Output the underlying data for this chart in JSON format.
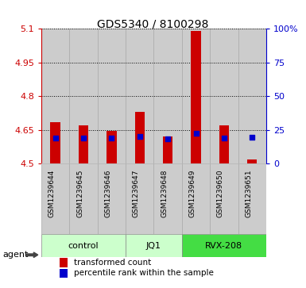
{
  "title": "GDS5340 / 8100298",
  "samples": [
    "GSM1239644",
    "GSM1239645",
    "GSM1239646",
    "GSM1239647",
    "GSM1239648",
    "GSM1239649",
    "GSM1239650",
    "GSM1239651"
  ],
  "red_values": [
    4.685,
    4.67,
    4.645,
    4.73,
    4.62,
    5.09,
    4.67,
    4.52
  ],
  "blue_values": [
    4.615,
    4.615,
    4.613,
    4.62,
    4.61,
    4.635,
    4.615,
    4.617
  ],
  "ylim": [
    4.5,
    5.1
  ],
  "yticks_left": [
    4.5,
    4.65,
    4.8,
    4.95,
    5.1
  ],
  "yticks_right": [
    0,
    25,
    50,
    75,
    100
  ],
  "ytick_labels_left": [
    "4.5",
    "4.65",
    "4.8",
    "4.95",
    "5.1"
  ],
  "ytick_labels_right": [
    "0",
    "25",
    "50",
    "75",
    "100%"
  ],
  "groups": [
    {
      "label": "control",
      "indices": [
        0,
        1,
        2
      ],
      "color": "#ccffcc"
    },
    {
      "label": "JQ1",
      "indices": [
        3,
        4
      ],
      "color": "#ccffcc"
    },
    {
      "label": "RVX-208",
      "indices": [
        5,
        6,
        7
      ],
      "color": "#44dd44"
    }
  ],
  "bar_bottom": 4.5,
  "bar_width": 0.35,
  "col_color": "#cccccc",
  "col_edge": "#aaaaaa",
  "red_color": "#cc0000",
  "blue_color": "#0000cc",
  "bg_color": "#ffffff",
  "tick_color_left": "#cc0000",
  "tick_color_right": "#0000cc",
  "legend_red": "transformed count",
  "legend_blue": "percentile rank within the sample",
  "title_fontsize": 10,
  "tick_fontsize": 8,
  "sample_fontsize": 6.5,
  "group_fontsize": 8,
  "legend_fontsize": 7.5
}
